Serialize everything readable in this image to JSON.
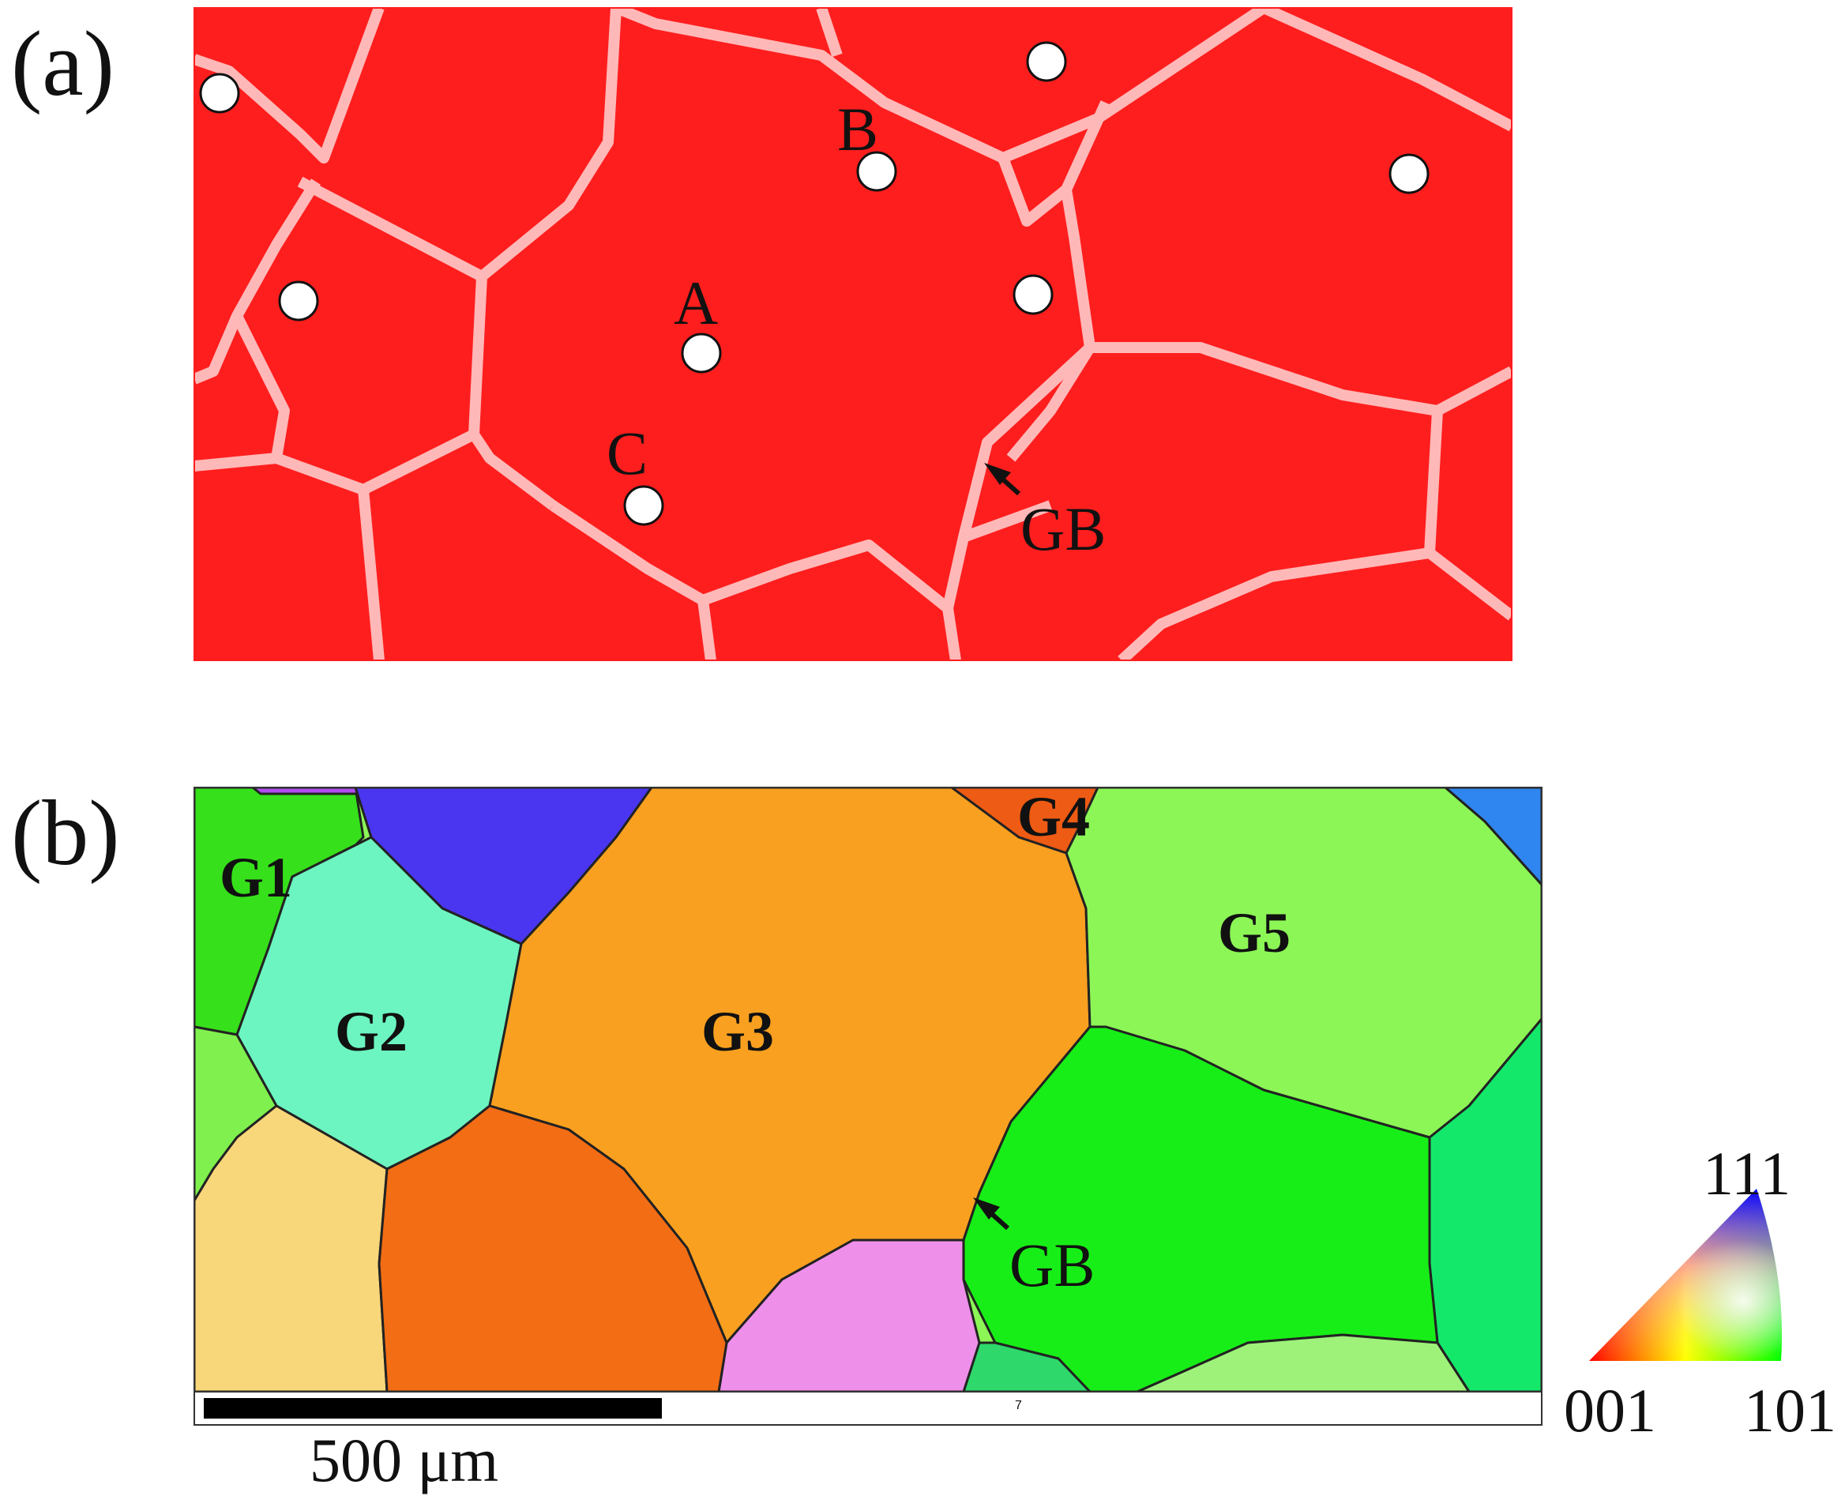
{
  "panels": {
    "a": {
      "label": "(a)",
      "points": {
        "A": "A",
        "B": "B",
        "C": "C"
      },
      "gb": "GB"
    },
    "b": {
      "label": "(b)",
      "grains": {
        "g1": "G1",
        "g2": "G2",
        "g3": "G3",
        "g4": "G4",
        "g5": "G5"
      },
      "gb": "GB"
    }
  },
  "scale_bar": {
    "label": "500 μm",
    "marker": "7"
  },
  "legend": {
    "top": "111",
    "left": "001",
    "right": "101"
  },
  "colors": {
    "map_a_base": "#ff1a1a",
    "grain_boundary_a": "#ffb3b3",
    "g1": "#36e01a",
    "g2": "#6cf5c0",
    "g3": "#f9a020",
    "g4": "#ee5b14",
    "g5": "#8cf656",
    "blue_grain": "#4a36f0",
    "pink_grain": "#ee8fea",
    "yellow_grain": "#f8d67a",
    "orange_grain": "#f26d14",
    "green_grain": "#17ee17"
  }
}
